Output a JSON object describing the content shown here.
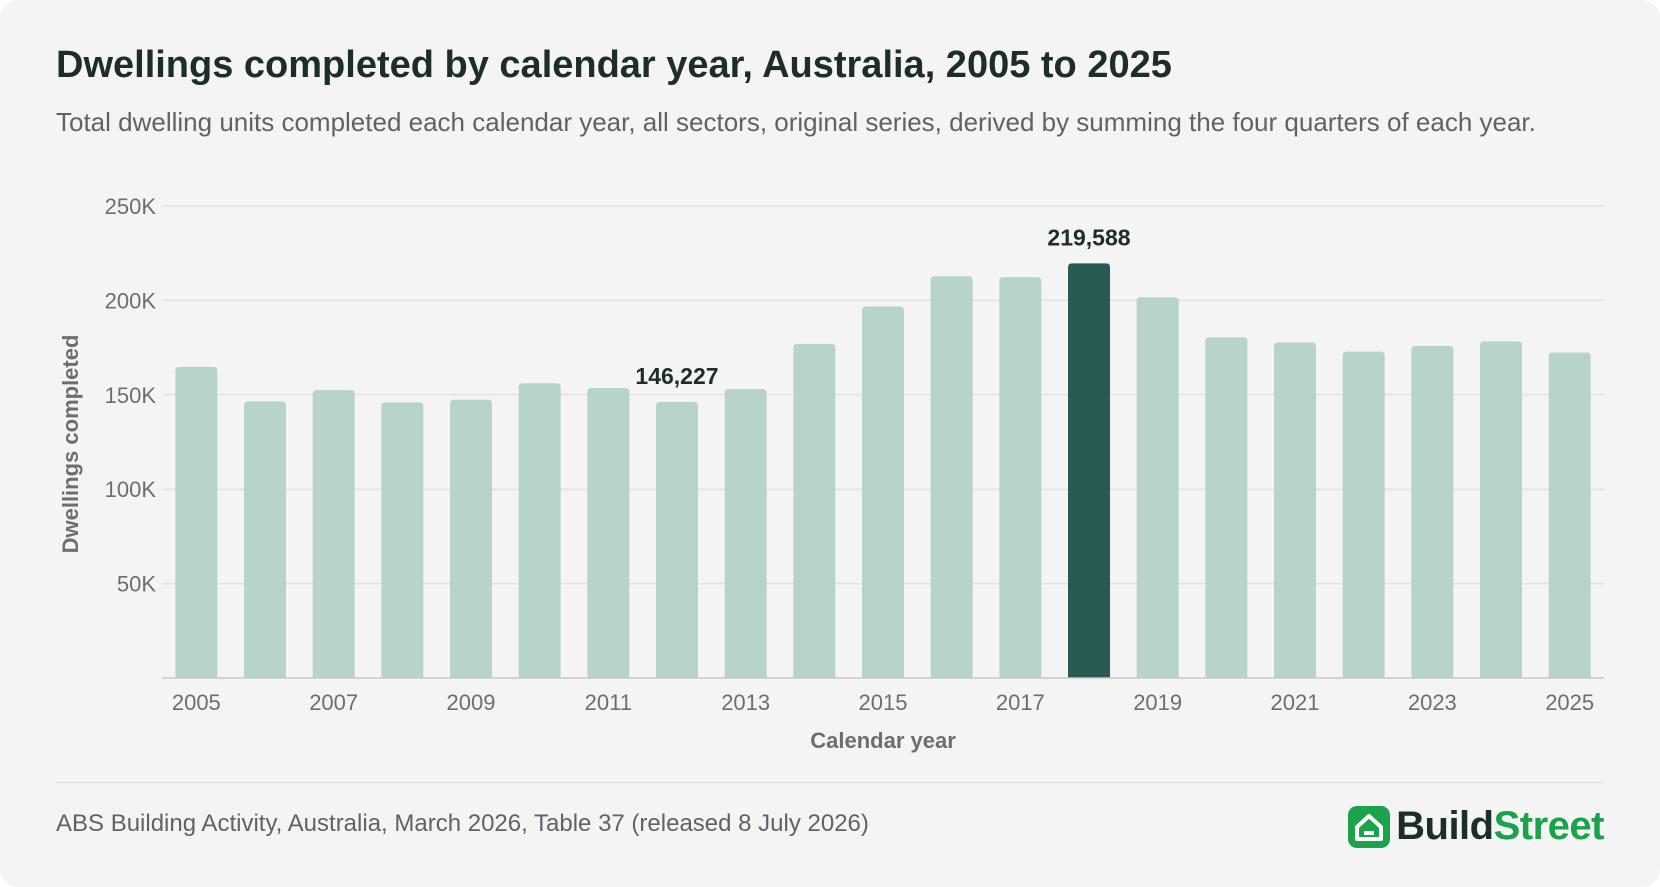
{
  "title": "Dwellings completed by calendar year, Australia, 2005 to 2025",
  "subtitle": "Total dwelling units completed each calendar year, all sectors, original series, derived by summing the four quarters of each year.",
  "source": "ABS Building Activity, Australia, March 2026, Table 37 (released 8 July 2026)",
  "brand": {
    "part1": "Build",
    "part2": "Street",
    "icon": "house-icon"
  },
  "colors": {
    "bar": "#b7d4cb",
    "highlight": "#285c52",
    "grid": "#e2e2e2",
    "axis_text": "#6b6f73",
    "label_text": "#1d2e27",
    "brand_green": "#1aa34a"
  },
  "chart_data": {
    "type": "bar",
    "title": "Dwellings completed by calendar year, Australia, 2005 to 2025",
    "xlabel": "Calendar year",
    "ylabel": "Dwellings completed",
    "categories": [
      "2005",
      "2006",
      "2007",
      "2008",
      "2009",
      "2010",
      "2011",
      "2012",
      "2013",
      "2014",
      "2015",
      "2016",
      "2017",
      "2018",
      "2019",
      "2020",
      "2021",
      "2022",
      "2023",
      "2024",
      "2025"
    ],
    "values": [
      164800,
      146500,
      152500,
      145900,
      147400,
      156100,
      153600,
      146227,
      153000,
      177000,
      196800,
      212800,
      212300,
      219588,
      201700,
      180500,
      177800,
      172900,
      175900,
      178300,
      172400
    ],
    "ylim": [
      0,
      250000
    ],
    "yticks": [
      50000,
      100000,
      150000,
      200000,
      250000
    ],
    "ytick_labels": [
      "50K",
      "100K",
      "150K",
      "200K",
      "250K"
    ],
    "xtick_labels": [
      "2005",
      "",
      "2007",
      "",
      "2009",
      "",
      "2011",
      "",
      "2013",
      "",
      "2015",
      "",
      "2017",
      "",
      "2019",
      "",
      "2021",
      "",
      "2023",
      "",
      "2025"
    ],
    "grid": true,
    "highlight_category": "2018",
    "annotations": [
      {
        "category": "2012",
        "text": "146,227"
      },
      {
        "category": "2018",
        "text": "219,588"
      }
    ]
  }
}
